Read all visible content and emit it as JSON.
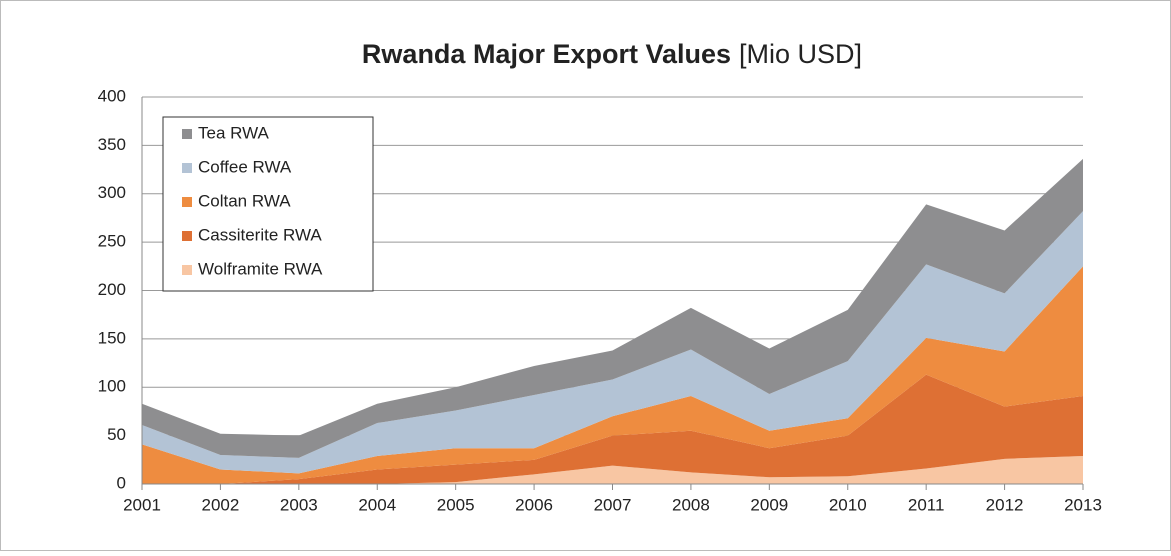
{
  "chart_data": {
    "type": "stacked_area",
    "title": "Rwanda Major Export Values",
    "subtitle": "[Mio USD]",
    "categories": [
      "2001",
      "2002",
      "2003",
      "2004",
      "2005",
      "2006",
      "2007",
      "2008",
      "2009",
      "2010",
      "2011",
      "2012",
      "2013"
    ],
    "series": [
      {
        "name": "Tea RWA",
        "color": "#8e8e90",
        "values": [
          22,
          22,
          23,
          20,
          24,
          30,
          30,
          43,
          47,
          53,
          62,
          65,
          54
        ]
      },
      {
        "name": "Coffee RWA",
        "color": "#b3c3d5",
        "values": [
          20,
          15,
          16,
          34,
          39,
          55,
          38,
          48,
          38,
          59,
          76,
          60,
          57
        ]
      },
      {
        "name": "Coltan RWA",
        "color": "#ee8c40",
        "values": [
          41,
          15,
          6,
          14,
          17,
          12,
          20,
          36,
          18,
          18,
          38,
          57,
          134
        ]
      },
      {
        "name": "Cassiterite RWA",
        "color": "#de7034",
        "values": [
          0,
          0,
          5,
          15,
          18,
          15,
          31,
          43,
          30,
          42,
          97,
          54,
          62
        ]
      },
      {
        "name": "Wolframite RWA",
        "color": "#f8c6a3",
        "values": [
          0,
          0,
          0,
          0,
          2,
          10,
          19,
          12,
          7,
          8,
          16,
          26,
          29
        ]
      }
    ],
    "ylim": [
      0,
      400
    ],
    "yticks": [
      0,
      50,
      100,
      150,
      200,
      250,
      300,
      350,
      400
    ],
    "grid": true,
    "legend": "top-left"
  }
}
